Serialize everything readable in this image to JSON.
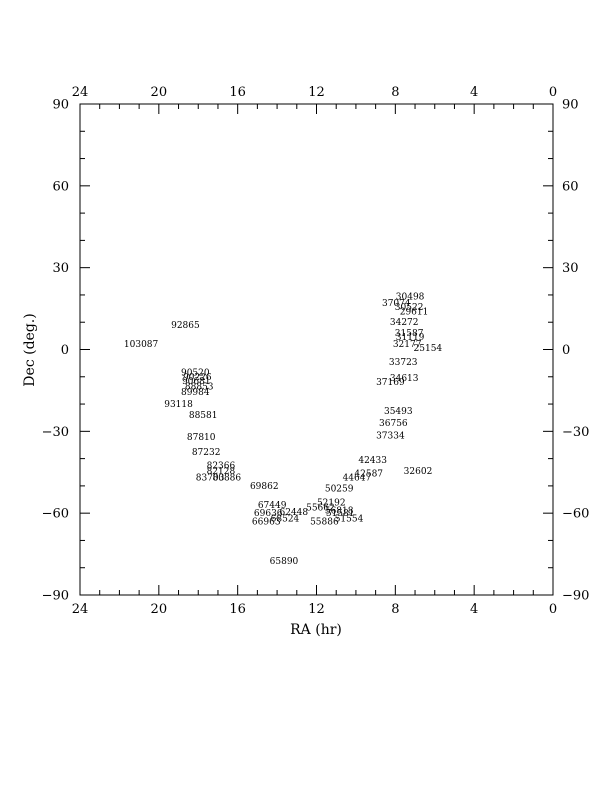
{
  "chart_data": {
    "type": "scatter",
    "xlabel": "RA (hr)",
    "ylabel": "Dec (deg.)",
    "xlim": [
      24,
      0
    ],
    "ylim": [
      -90,
      90
    ],
    "x_ticks": [
      24,
      20,
      16,
      12,
      8,
      4,
      0
    ],
    "y_ticks": [
      -90,
      -60,
      -30,
      0,
      30,
      60,
      90
    ],
    "x_tick_labels": [
      "24",
      "20",
      "16",
      "12",
      "8",
      "4",
      "0"
    ],
    "y_tick_labels": [
      "−90",
      "−60",
      "−30",
      "0",
      "30",
      "60",
      "90"
    ],
    "grid": false,
    "points": [
      {
        "label": "30498",
        "ra": 7.25,
        "dec": 19.5
      },
      {
        "label": "37074",
        "ra": 7.95,
        "dec": 17.0
      },
      {
        "label": "30522",
        "ra": 7.3,
        "dec": 15.5
      },
      {
        "label": "29611",
        "ra": 7.05,
        "dec": 14.0
      },
      {
        "label": "34272",
        "ra": 7.55,
        "dec": 10.0
      },
      {
        "label": "31587",
        "ra": 7.3,
        "dec": 6.0
      },
      {
        "label": "31119",
        "ra": 7.25,
        "dec": 4.5
      },
      {
        "label": "32177",
        "ra": 7.4,
        "dec": 2.0
      },
      {
        "label": "25154",
        "ra": 6.35,
        "dec": 0.5
      },
      {
        "label": "33723",
        "ra": 7.6,
        "dec": -4.5
      },
      {
        "label": "34613",
        "ra": 7.55,
        "dec": -10.5
      },
      {
        "label": "37169",
        "ra": 8.25,
        "dec": -12.0
      },
      {
        "label": "35493",
        "ra": 7.85,
        "dec": -22.5
      },
      {
        "label": "36756",
        "ra": 8.1,
        "dec": -27.0
      },
      {
        "label": "37334",
        "ra": 8.25,
        "dec": -31.5
      },
      {
        "label": "42433",
        "ra": 9.15,
        "dec": -40.5
      },
      {
        "label": "32602",
        "ra": 6.85,
        "dec": -44.5
      },
      {
        "label": "42587",
        "ra": 9.35,
        "dec": -45.5
      },
      {
        "label": "44647",
        "ra": 9.95,
        "dec": -47.0
      },
      {
        "label": "50259",
        "ra": 10.85,
        "dec": -51.0
      },
      {
        "label": "52192",
        "ra": 11.25,
        "dec": -56.0
      },
      {
        "label": "55662",
        "ra": 11.8,
        "dec": -58.0
      },
      {
        "label": "56818",
        "ra": 10.85,
        "dec": -59.0
      },
      {
        "label": "51581",
        "ra": 10.8,
        "dec": -60.0
      },
      {
        "label": "51554",
        "ra": 10.35,
        "dec": -62.0
      },
      {
        "label": "55886",
        "ra": 11.6,
        "dec": -63.0
      },
      {
        "label": "67449",
        "ra": 14.25,
        "dec": -57.0
      },
      {
        "label": "62448",
        "ra": 13.15,
        "dec": -59.5
      },
      {
        "label": "69636",
        "ra": 14.45,
        "dec": -60.0
      },
      {
        "label": "68524",
        "ra": 13.6,
        "dec": -62.0
      },
      {
        "label": "66963",
        "ra": 14.55,
        "dec": -63.0
      },
      {
        "label": "65890",
        "ra": 13.65,
        "dec": -77.5
      },
      {
        "label": "69862",
        "ra": 14.65,
        "dec": -50.0
      },
      {
        "label": "92865",
        "ra": 18.65,
        "dec": 9.0
      },
      {
        "label": "103087",
        "ra": 20.9,
        "dec": 2.0
      },
      {
        "label": "90520",
        "ra": 18.15,
        "dec": -8.5
      },
      {
        "label": "90226",
        "ra": 18.05,
        "dec": -10.0
      },
      {
        "label": "90681",
        "ra": 18.1,
        "dec": -11.5
      },
      {
        "label": "88853",
        "ra": 17.95,
        "dec": -13.5
      },
      {
        "label": "89984",
        "ra": 18.15,
        "dec": -15.5
      },
      {
        "label": "93118",
        "ra": 19.0,
        "dec": -20.0
      },
      {
        "label": "88581",
        "ra": 17.75,
        "dec": -24.0
      },
      {
        "label": "87810",
        "ra": 17.85,
        "dec": -32.0
      },
      {
        "label": "87232",
        "ra": 17.6,
        "dec": -37.5
      },
      {
        "label": "82366",
        "ra": 16.85,
        "dec": -42.5
      },
      {
        "label": "82128",
        "ra": 16.85,
        "dec": -44.5
      },
      {
        "label": "83703",
        "ra": 17.4,
        "dec": -47.0
      },
      {
        "label": "80886",
        "ra": 16.55,
        "dec": -47.0
      }
    ]
  }
}
